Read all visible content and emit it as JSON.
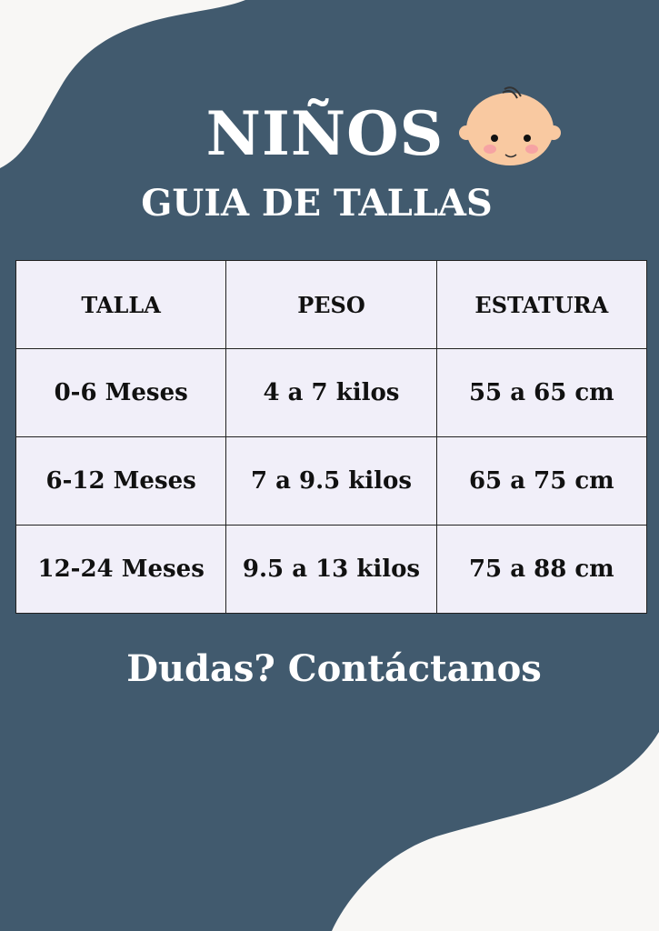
{
  "header": {
    "title": "NIÑOS",
    "subtitle": "GUIA DE TALLAS",
    "icon": "baby-face-icon"
  },
  "table": {
    "headers": [
      "TALLA",
      "PESO",
      "ESTATURA"
    ],
    "rows": [
      [
        "0-6 Meses",
        "4 a 7 kilos",
        "55 a 65 cm"
      ],
      [
        "6-12 Meses",
        "7 a 9.5 kilos",
        "65 a 75 cm"
      ],
      [
        "12-24 Meses",
        "9.5 a 13 kilos",
        "75 a 88 cm"
      ]
    ]
  },
  "footer": {
    "contact": "Dudas? Contáctanos"
  },
  "colors": {
    "background": "#415a6e",
    "accent_blob": "#f8f7f5",
    "table_bg": "#f1eff9"
  }
}
